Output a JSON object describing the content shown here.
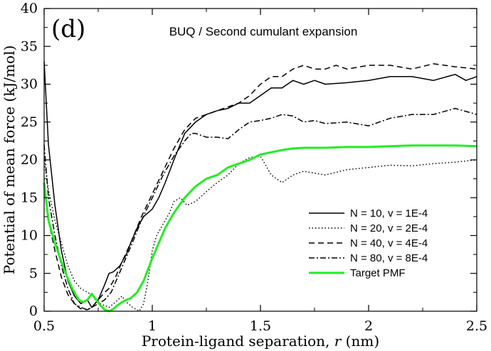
{
  "chart_data": {
    "type": "line",
    "panel_label": "(d)",
    "title": "BUQ / Second cumulant expansion",
    "xlabel_prefix": "Protein-ligand separation, ",
    "xlabel_var": "r",
    "xlabel_suffix": " (nm)",
    "ylabel": "Potential of mean force (kJ/mol)",
    "xlim": [
      0.5,
      2.5
    ],
    "ylim": [
      0,
      40
    ],
    "xticks": [
      0.5,
      1,
      1.5,
      2,
      2.5
    ],
    "xtick_labels": [
      "0.5",
      "1",
      "1.5",
      "2",
      "2.5"
    ],
    "yticks": [
      0,
      5,
      10,
      15,
      20,
      25,
      30,
      35,
      40
    ],
    "ytick_labels": [
      "0",
      "5",
      "10",
      "15",
      "20",
      "25",
      "30",
      "35",
      "40"
    ],
    "legend_position": "lower-right",
    "series": [
      {
        "name": "N = 10, v = 1E-4",
        "color": "#000000",
        "style": "solid",
        "x": [
          0.5,
          0.52,
          0.55,
          0.58,
          0.61,
          0.64,
          0.67,
          0.7,
          0.72,
          0.75,
          0.78,
          0.8,
          0.82,
          0.85,
          0.88,
          0.9,
          0.93,
          0.96,
          1.0,
          1.03,
          1.06,
          1.1,
          1.15,
          1.2,
          1.25,
          1.3,
          1.35,
          1.4,
          1.45,
          1.5,
          1.55,
          1.6,
          1.65,
          1.7,
          1.75,
          1.8,
          1.9,
          2.0,
          2.1,
          2.2,
          2.3,
          2.4,
          2.45,
          2.5
        ],
        "y": [
          33,
          22,
          14,
          8,
          4,
          2,
          1,
          1.5,
          0.5,
          1.5,
          3.5,
          5,
          5.2,
          6,
          7.5,
          9,
          11,
          12.5,
          13.5,
          15,
          17,
          20,
          23.5,
          25,
          26,
          26.5,
          26.8,
          27.5,
          27.5,
          28.5,
          29.5,
          29.5,
          30.5,
          30,
          30.5,
          30,
          30.2,
          30.5,
          31,
          31,
          30.5,
          31.3,
          30.5,
          31
        ]
      },
      {
        "name": "N = 20, v = 2E-4",
        "color": "#000000",
        "style": "dotted",
        "x": [
          0.5,
          0.52,
          0.55,
          0.58,
          0.61,
          0.64,
          0.67,
          0.7,
          0.73,
          0.76,
          0.8,
          0.83,
          0.86,
          0.88,
          0.91,
          0.94,
          0.96,
          0.98,
          1.0,
          1.02,
          1.05,
          1.08,
          1.1,
          1.13,
          1.16,
          1.2,
          1.25,
          1.3,
          1.35,
          1.4,
          1.45,
          1.5,
          1.55,
          1.6,
          1.65,
          1.7,
          1.8,
          1.9,
          2.0,
          2.1,
          2.2,
          2.3,
          2.4,
          2.5
        ],
        "y": [
          20,
          16,
          12,
          9,
          6,
          4,
          3,
          2.5,
          2,
          1,
          0.5,
          1.2,
          2,
          1.2,
          0.5,
          0,
          1,
          4,
          8,
          10,
          11.5,
          13,
          14.5,
          15,
          14,
          14.5,
          15.8,
          17,
          18,
          19.5,
          20.3,
          20.5,
          18,
          17,
          18,
          18.5,
          18,
          18.7,
          19,
          19.3,
          19.2,
          19.5,
          19.7,
          20
        ]
      },
      {
        "name": "N = 40, v = 4E-4",
        "color": "#000000",
        "style": "dashed",
        "x": [
          0.5,
          0.52,
          0.55,
          0.58,
          0.61,
          0.64,
          0.67,
          0.7,
          0.72,
          0.75,
          0.78,
          0.8,
          0.83,
          0.86,
          0.9,
          0.95,
          1.0,
          1.05,
          1.1,
          1.15,
          1.2,
          1.25,
          1.3,
          1.35,
          1.4,
          1.45,
          1.5,
          1.55,
          1.6,
          1.65,
          1.7,
          1.75,
          1.8,
          1.85,
          1.9,
          2.0,
          2.1,
          2.2,
          2.3,
          2.4,
          2.5
        ],
        "y": [
          17,
          12,
          8,
          4.5,
          2.2,
          1,
          0.3,
          0.2,
          0.5,
          1.5,
          2.5,
          3,
          4.5,
          6.5,
          9,
          12.5,
          15.5,
          18.5,
          21.5,
          24,
          25.5,
          26,
          26.5,
          27,
          27.5,
          28.5,
          30,
          31,
          31,
          32,
          32.5,
          32,
          32,
          32.5,
          32,
          32.5,
          32.5,
          32,
          32.7,
          32.3,
          32
        ]
      },
      {
        "name": "N = 80, v = 8E-4",
        "color": "#000000",
        "style": "dashdot",
        "x": [
          0.5,
          0.52,
          0.55,
          0.58,
          0.61,
          0.64,
          0.67,
          0.7,
          0.72,
          0.75,
          0.78,
          0.81,
          0.84,
          0.87,
          0.9,
          0.95,
          1.0,
          1.05,
          1.1,
          1.15,
          1.18,
          1.2,
          1.25,
          1.3,
          1.35,
          1.4,
          1.45,
          1.5,
          1.55,
          1.6,
          1.65,
          1.7,
          1.75,
          1.8,
          1.9,
          2.0,
          2.1,
          2.2,
          2.3,
          2.4,
          2.5
        ],
        "y": [
          22,
          15,
          10,
          6,
          3,
          1,
          0.5,
          0.2,
          0.5,
          1,
          1.5,
          2.5,
          4.5,
          6.5,
          8.5,
          12,
          15,
          18,
          20.5,
          22.5,
          23.5,
          23.5,
          23,
          23,
          22.8,
          24,
          25,
          25.2,
          25.5,
          26,
          25.8,
          25,
          25.2,
          24.8,
          25,
          24.5,
          25.5,
          26,
          26,
          26.8,
          26
        ]
      },
      {
        "name": "Target PMF",
        "color": "#22ee22",
        "style": "solid",
        "x": [
          0.5,
          0.52,
          0.55,
          0.58,
          0.6,
          0.63,
          0.66,
          0.68,
          0.7,
          0.72,
          0.74,
          0.76,
          0.78,
          0.8,
          0.82,
          0.84,
          0.86,
          0.88,
          0.9,
          0.93,
          0.96,
          1.0,
          1.03,
          1.06,
          1.1,
          1.15,
          1.2,
          1.25,
          1.3,
          1.35,
          1.4,
          1.45,
          1.5,
          1.55,
          1.6,
          1.65,
          1.7,
          1.8,
          1.9,
          2.0,
          2.1,
          2.2,
          2.3,
          2.4,
          2.5
        ],
        "y": [
          17,
          12,
          9,
          6.5,
          5,
          3,
          1.5,
          1.2,
          1.5,
          2.3,
          1.5,
          0.8,
          0.2,
          0,
          0.3,
          0.8,
          1.2,
          1.5,
          1.7,
          2.5,
          4,
          7,
          9,
          11,
          13,
          15,
          16.5,
          17.5,
          18,
          19,
          19.5,
          20,
          20.7,
          21,
          21.3,
          21.5,
          21.6,
          21.6,
          21.7,
          21.7,
          21.8,
          21.9,
          21.9,
          21.9,
          21.8
        ]
      }
    ]
  }
}
